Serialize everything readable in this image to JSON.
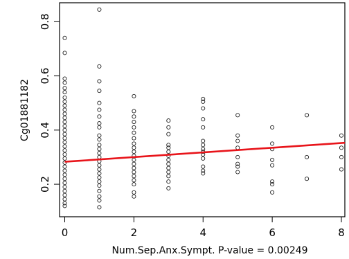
{
  "chart_data": {
    "type": "scatter",
    "title": "",
    "xlabel": "Num.Sep.Anx.Sympt. P-value = 0.00249",
    "ylabel": "Cg01881182",
    "xlim": [
      -0.15,
      8.1
    ],
    "ylim": [
      0.08,
      0.87
    ],
    "x_ticks": [
      0,
      2,
      4,
      6,
      8
    ],
    "x_tick_labels": [
      "0",
      "2",
      "4",
      "6",
      "8"
    ],
    "y_ticks": [
      0.2,
      0.4,
      0.6,
      0.8
    ],
    "y_tick_labels": [
      "0.2",
      "0.4",
      "0.6",
      "0.8"
    ],
    "grid": false,
    "fit_line": {
      "color": "#e8141a",
      "x": [
        0,
        8.1
      ],
      "y": [
        0.283,
        0.353
      ]
    },
    "colors": {
      "points": "#222222",
      "fit": "#e8141a"
    },
    "points": [
      {
        "x": 0,
        "y": 0.74
      },
      {
        "x": 0,
        "y": 0.685
      },
      {
        "x": 0,
        "y": 0.59
      },
      {
        "x": 0,
        "y": 0.575
      },
      {
        "x": 0,
        "y": 0.555
      },
      {
        "x": 0,
        "y": 0.54
      },
      {
        "x": 0,
        "y": 0.52
      },
      {
        "x": 0,
        "y": 0.505
      },
      {
        "x": 0,
        "y": 0.49
      },
      {
        "x": 0,
        "y": 0.475
      },
      {
        "x": 0,
        "y": 0.46
      },
      {
        "x": 0,
        "y": 0.445
      },
      {
        "x": 0,
        "y": 0.43
      },
      {
        "x": 0,
        "y": 0.415
      },
      {
        "x": 0,
        "y": 0.4
      },
      {
        "x": 0,
        "y": 0.385
      },
      {
        "x": 0,
        "y": 0.37
      },
      {
        "x": 0,
        "y": 0.355
      },
      {
        "x": 0,
        "y": 0.34
      },
      {
        "x": 0,
        "y": 0.325
      },
      {
        "x": 0,
        "y": 0.31
      },
      {
        "x": 0,
        "y": 0.295
      },
      {
        "x": 0,
        "y": 0.28
      },
      {
        "x": 0,
        "y": 0.265
      },
      {
        "x": 0,
        "y": 0.25
      },
      {
        "x": 0,
        "y": 0.235
      },
      {
        "x": 0,
        "y": 0.22
      },
      {
        "x": 0,
        "y": 0.205
      },
      {
        "x": 0,
        "y": 0.19
      },
      {
        "x": 0,
        "y": 0.175
      },
      {
        "x": 0,
        "y": 0.16
      },
      {
        "x": 0,
        "y": 0.145
      },
      {
        "x": 0,
        "y": 0.13
      },
      {
        "x": 0,
        "y": 0.12
      },
      {
        "x": 1,
        "y": 0.845
      },
      {
        "x": 1,
        "y": 0.635
      },
      {
        "x": 1,
        "y": 0.58
      },
      {
        "x": 1,
        "y": 0.545
      },
      {
        "x": 1,
        "y": 0.5
      },
      {
        "x": 1,
        "y": 0.475
      },
      {
        "x": 1,
        "y": 0.45
      },
      {
        "x": 1,
        "y": 0.425
      },
      {
        "x": 1,
        "y": 0.41
      },
      {
        "x": 1,
        "y": 0.38
      },
      {
        "x": 1,
        "y": 0.365
      },
      {
        "x": 1,
        "y": 0.345
      },
      {
        "x": 1,
        "y": 0.33
      },
      {
        "x": 1,
        "y": 0.315
      },
      {
        "x": 1,
        "y": 0.3
      },
      {
        "x": 1,
        "y": 0.285
      },
      {
        "x": 1,
        "y": 0.27
      },
      {
        "x": 1,
        "y": 0.255
      },
      {
        "x": 1,
        "y": 0.24
      },
      {
        "x": 1,
        "y": 0.225
      },
      {
        "x": 1,
        "y": 0.21
      },
      {
        "x": 1,
        "y": 0.195
      },
      {
        "x": 1,
        "y": 0.175
      },
      {
        "x": 1,
        "y": 0.155
      },
      {
        "x": 1,
        "y": 0.14
      },
      {
        "x": 1,
        "y": 0.115
      },
      {
        "x": 2,
        "y": 0.525
      },
      {
        "x": 2,
        "y": 0.47
      },
      {
        "x": 2,
        "y": 0.45
      },
      {
        "x": 2,
        "y": 0.43
      },
      {
        "x": 2,
        "y": 0.41
      },
      {
        "x": 2,
        "y": 0.39
      },
      {
        "x": 2,
        "y": 0.37
      },
      {
        "x": 2,
        "y": 0.35
      },
      {
        "x": 2,
        "y": 0.335
      },
      {
        "x": 2,
        "y": 0.32
      },
      {
        "x": 2,
        "y": 0.305
      },
      {
        "x": 2,
        "y": 0.29
      },
      {
        "x": 2,
        "y": 0.275
      },
      {
        "x": 2,
        "y": 0.26
      },
      {
        "x": 2,
        "y": 0.245
      },
      {
        "x": 2,
        "y": 0.23
      },
      {
        "x": 2,
        "y": 0.215
      },
      {
        "x": 2,
        "y": 0.2
      },
      {
        "x": 2,
        "y": 0.17
      },
      {
        "x": 2,
        "y": 0.155
      },
      {
        "x": 3,
        "y": 0.435
      },
      {
        "x": 3,
        "y": 0.41
      },
      {
        "x": 3,
        "y": 0.385
      },
      {
        "x": 3,
        "y": 0.345
      },
      {
        "x": 3,
        "y": 0.335
      },
      {
        "x": 3,
        "y": 0.32
      },
      {
        "x": 3,
        "y": 0.305
      },
      {
        "x": 3,
        "y": 0.29
      },
      {
        "x": 3,
        "y": 0.275
      },
      {
        "x": 3,
        "y": 0.26
      },
      {
        "x": 3,
        "y": 0.245
      },
      {
        "x": 3,
        "y": 0.23
      },
      {
        "x": 3,
        "y": 0.21
      },
      {
        "x": 3,
        "y": 0.185
      },
      {
        "x": 4,
        "y": 0.515
      },
      {
        "x": 4,
        "y": 0.505
      },
      {
        "x": 4,
        "y": 0.48
      },
      {
        "x": 4,
        "y": 0.44
      },
      {
        "x": 4,
        "y": 0.41
      },
      {
        "x": 4,
        "y": 0.36
      },
      {
        "x": 4,
        "y": 0.345
      },
      {
        "x": 4,
        "y": 0.33
      },
      {
        "x": 4,
        "y": 0.32
      },
      {
        "x": 4,
        "y": 0.31
      },
      {
        "x": 4,
        "y": 0.295
      },
      {
        "x": 4,
        "y": 0.265
      },
      {
        "x": 4,
        "y": 0.25
      },
      {
        "x": 4,
        "y": 0.24
      },
      {
        "x": 5,
        "y": 0.455
      },
      {
        "x": 5,
        "y": 0.38
      },
      {
        "x": 5,
        "y": 0.36
      },
      {
        "x": 5,
        "y": 0.335
      },
      {
        "x": 5,
        "y": 0.3
      },
      {
        "x": 5,
        "y": 0.275
      },
      {
        "x": 5,
        "y": 0.265
      },
      {
        "x": 5,
        "y": 0.245
      },
      {
        "x": 6,
        "y": 0.41
      },
      {
        "x": 6,
        "y": 0.35
      },
      {
        "x": 6,
        "y": 0.33
      },
      {
        "x": 6,
        "y": 0.29
      },
      {
        "x": 6,
        "y": 0.27
      },
      {
        "x": 6,
        "y": 0.21
      },
      {
        "x": 6,
        "y": 0.2
      },
      {
        "x": 6,
        "y": 0.17
      },
      {
        "x": 7,
        "y": 0.455
      },
      {
        "x": 7,
        "y": 0.3
      },
      {
        "x": 7,
        "y": 0.22
      },
      {
        "x": 8,
        "y": 0.38
      },
      {
        "x": 8,
        "y": 0.335
      },
      {
        "x": 8,
        "y": 0.3
      },
      {
        "x": 8,
        "y": 0.255
      }
    ]
  }
}
